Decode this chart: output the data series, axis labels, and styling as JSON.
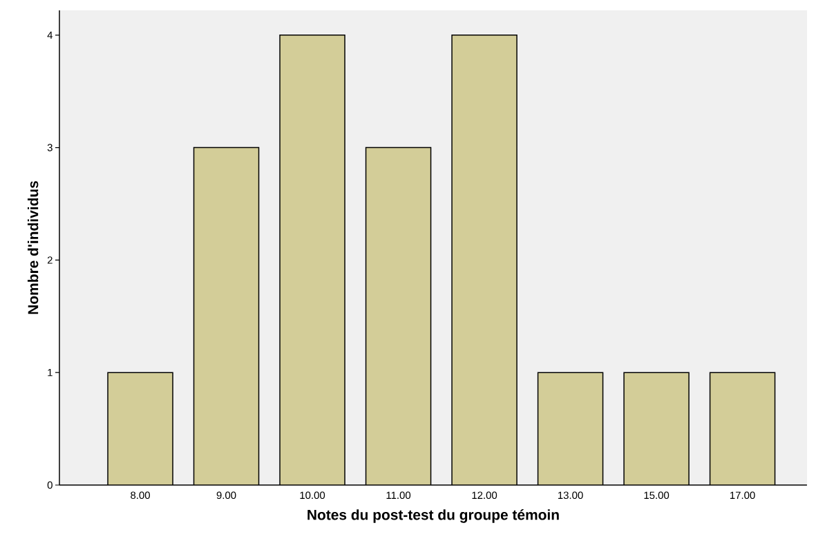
{
  "chart_data": {
    "type": "bar",
    "xlabel": "Notes du post-test du groupe témoin",
    "ylabel": "Nombre d'individus",
    "categories": [
      "8.00",
      "9.00",
      "10.00",
      "11.00",
      "12.00",
      "13.00",
      "15.00",
      "17.00"
    ],
    "values": [
      1,
      3,
      4,
      3,
      4,
      1,
      1,
      1
    ],
    "color": "#d3cd98",
    "ylim": [
      0,
      4.22
    ],
    "yticks": [
      0,
      1,
      2,
      3,
      4
    ]
  }
}
